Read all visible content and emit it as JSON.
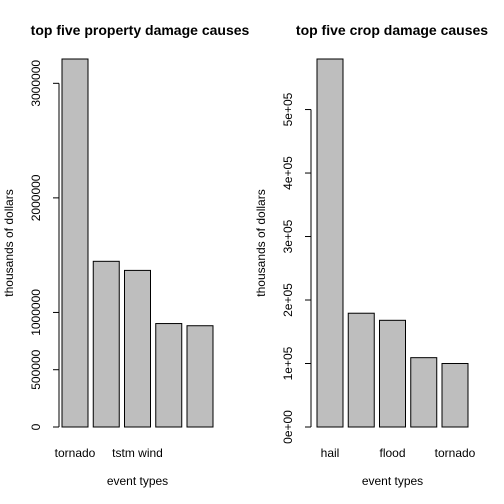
{
  "chart_data": [
    {
      "type": "bar",
      "title": "top five property damage causes",
      "xlabel": "event types",
      "ylabel": "thousands of dollars",
      "categories": [
        "tornado",
        "",
        "tstm wind",
        "",
        ""
      ],
      "values": [
        3212258,
        1446277,
        1367000,
        903000,
        884000
      ],
      "ylim": [
        0,
        3212258
      ],
      "yticks": [
        0,
        500000,
        1000000,
        2000000,
        3000000
      ],
      "ytick_labels": [
        "0",
        "500000",
        "1000000",
        "2000000",
        "3000000"
      ],
      "bar_color": "#bebebe",
      "grid": false
    },
    {
      "type": "bar",
      "title": "top five crop damage causes",
      "xlabel": "event types",
      "ylabel": "thousands of dollars",
      "categories": [
        "hail",
        "",
        "flood",
        "",
        "tornado"
      ],
      "values": [
        579596,
        179200,
        168038,
        109202,
        100019
      ],
      "ylim": [
        0,
        579596
      ],
      "yticks": [
        0,
        100000,
        200000,
        300000,
        400000,
        500000
      ],
      "ytick_labels": [
        "0e+00",
        "1e+05",
        "2e+05",
        "3e+05",
        "4e+05",
        "5e+05"
      ],
      "bar_color": "#bebebe",
      "grid": false
    }
  ]
}
